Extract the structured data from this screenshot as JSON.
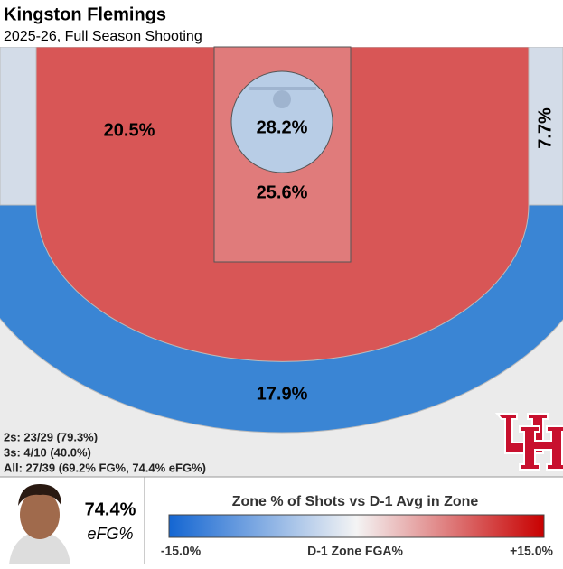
{
  "header": {
    "title": "Kingston Flemings",
    "subtitle": "2025-26, Full Season Shooting"
  },
  "zones": [
    {
      "name": "left-corner-three",
      "label": null,
      "color": "#d3dce8"
    },
    {
      "name": "right-corner-three",
      "label": "7.7%",
      "color": "#d3dce8"
    },
    {
      "name": "above-break-three",
      "label": "17.9%",
      "color": "#3a85d4"
    },
    {
      "name": "midrange",
      "label": "20.5%",
      "color": "#d85656"
    },
    {
      "name": "paint",
      "label": "25.6%",
      "color": "#e07b7b"
    },
    {
      "name": "rim",
      "label": "28.2%",
      "color": "#b8cde6"
    }
  ],
  "stats": [
    "2s: 23/29 (79.3%)",
    "3s: 4/10 (40.0%)",
    "All: 27/39 (69.2% FG%, 74.4% eFG%)"
  ],
  "efg": {
    "value": "74.4%",
    "label": "eFG%"
  },
  "legend": {
    "title": "Zone % of Shots vs D-1 Avg in Zone",
    "low": "-15.0%",
    "high": "+15.0%",
    "axis_label": "D-1 Zone FGA%"
  }
}
